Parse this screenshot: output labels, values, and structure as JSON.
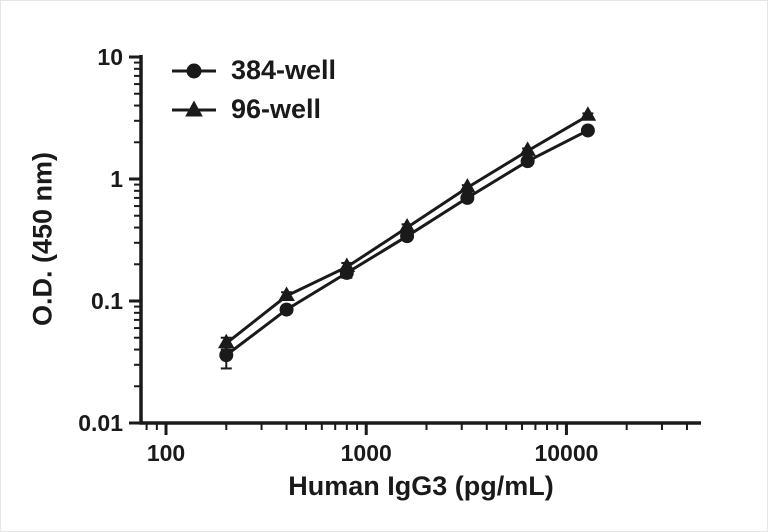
{
  "figure": {
    "background": "#ffffff",
    "axis_color": "#1a1a1a"
  },
  "chart_data": {
    "type": "line",
    "title": "",
    "xlabel": "Human IgG3 (pg/mL)",
    "ylabel": "O.D. (450 nm)",
    "x_scale": "log",
    "y_scale": "log",
    "x_range": [
      75,
      47000
    ],
    "y_range": [
      0.01,
      10
    ],
    "grid": false,
    "legend": {
      "position": "top-left"
    },
    "x_ticks": [
      {
        "value": 100,
        "label": "100"
      },
      {
        "value": 1000,
        "label": "1000"
      },
      {
        "value": 10000,
        "label": "10000"
      }
    ],
    "y_ticks": [
      {
        "value": 0.01,
        "label": "0.01"
      },
      {
        "value": 0.1,
        "label": "0.1"
      },
      {
        "value": 1,
        "label": "1"
      },
      {
        "value": 10,
        "label": "10"
      }
    ],
    "x": [
      200,
      400,
      800,
      1600,
      3200,
      6400,
      12800
    ],
    "series": [
      {
        "name": "384-well",
        "marker": "circle",
        "color": "#1a1a1a",
        "values": [
          0.036,
          0.085,
          0.17,
          0.34,
          0.7,
          1.4,
          2.5
        ],
        "y_err": [
          0.008,
          0.004,
          0.015,
          0.02,
          0.03,
          0.06,
          0.1
        ]
      },
      {
        "name": "96-well",
        "marker": "triangle",
        "color": "#1a1a1a",
        "values": [
          0.045,
          0.11,
          0.19,
          0.4,
          0.85,
          1.7,
          3.3
        ],
        "y_err": [
          0.005,
          0.008,
          0.015,
          0.025,
          0.04,
          0.08,
          0.15
        ]
      }
    ]
  }
}
